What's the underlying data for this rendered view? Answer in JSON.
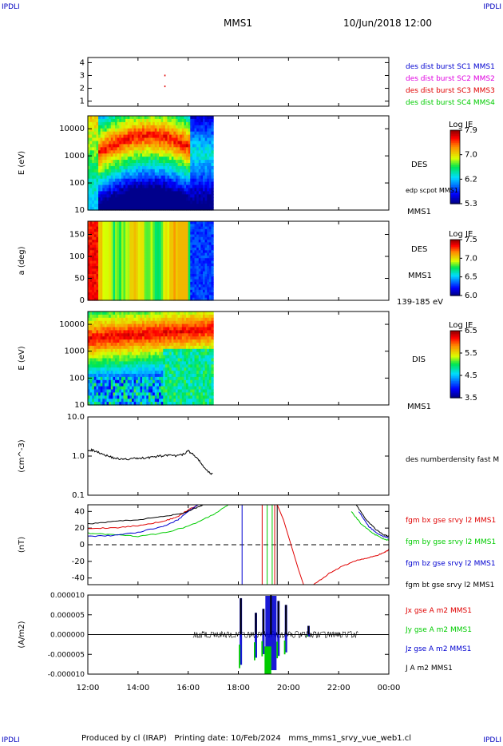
{
  "header": {
    "title": "MMS1",
    "datetime": "10/Jun/2018 12:00",
    "corner_label": "IPDLI"
  },
  "footer": {
    "produced_by": "Produced by cl (IRAP)",
    "printing_date": "Printing date: 10/Feb/2024",
    "filename": "mms_mms1_srvy_vue_web1.cl"
  },
  "time_axis": {
    "ticks": [
      "12:00",
      "14:00",
      "16:00",
      "18:00",
      "20:00",
      "22:00",
      "00:00"
    ],
    "start_hour": 12,
    "end_hour": 24,
    "data_end_hour": 17.0
  },
  "colors": {
    "red": "#e00000",
    "green": "#00cc00",
    "blue": "#0000d0",
    "magenta": "#e000e0",
    "black": "#000000"
  },
  "chart_data": [
    {
      "type": "scatter",
      "panel": "burst",
      "yticks": [
        "1",
        "2",
        "3",
        "4"
      ],
      "ylim": [
        0.6,
        4.4
      ],
      "legend": [
        "des dist burst SC1 MMS1",
        "des dist burst SC2 MMS2",
        "des dist burst SC3 MMS3",
        "des dist burst SC4 MMS4"
      ],
      "legend_colors": [
        "#0000d0",
        "#e000e0",
        "#e00000",
        "#00cc00"
      ],
      "points": [
        {
          "x": 15.05,
          "y": 3.0
        },
        {
          "x": 15.05,
          "y": 2.15
        }
      ]
    },
    {
      "type": "heatmap",
      "panel": "des_energy",
      "ylabel": "E (eV)",
      "yticks": [
        "10",
        "100",
        "1000",
        "10000"
      ],
      "ylim": [
        10,
        30000
      ],
      "yscale": "log",
      "right_label": "DES",
      "right_sublabel": "edp scpot MMS1",
      "bottom_label": "MMS1",
      "colorbar": {
        "title": "Log JE",
        "ticks": [
          "7.9",
          "7.0",
          "6.2",
          "5.3"
        ],
        "range": [
          5.3,
          7.9
        ]
      }
    },
    {
      "type": "heatmap",
      "panel": "des_pitch",
      "ylabel": "a (deg)",
      "yticks": [
        "0",
        "50",
        "100",
        "150"
      ],
      "ylim": [
        0,
        180
      ],
      "right_label": "DES",
      "right_sublabel": "MMS1",
      "bottom_label": "139-185 eV",
      "colorbar": {
        "title": "Log JE",
        "ticks": [
          "7.5",
          "7.0",
          "6.5",
          "6.0"
        ],
        "range": [
          6.0,
          7.5
        ]
      }
    },
    {
      "type": "heatmap",
      "panel": "dis_energy",
      "ylabel": "E (eV)",
      "yticks": [
        "10",
        "100",
        "1000",
        "10000"
      ],
      "ylim": [
        10,
        30000
      ],
      "yscale": "log",
      "right_label": "DIS",
      "bottom_label": "MMS1",
      "colorbar": {
        "title": "Log JE",
        "ticks": [
          "6.5",
          "5.5",
          "4.5",
          "3.5"
        ],
        "range": [
          3.5,
          6.5
        ]
      }
    },
    {
      "type": "line",
      "panel": "density",
      "ylabel": "(cm^-3)",
      "yticks": [
        "0.1",
        "1.0",
        "10.0"
      ],
      "ylim": [
        0.1,
        10
      ],
      "yscale": "log",
      "legend": [
        "des numberdensity fast M"
      ],
      "series": [
        {
          "name": "des numberdensity fast M",
          "x": [
            12.0,
            12.2,
            12.5,
            12.8,
            13.1,
            13.4,
            13.7,
            14.0,
            14.3,
            14.6,
            14.9,
            15.2,
            15.5,
            15.8,
            16.0,
            16.2,
            16.4,
            16.6,
            16.8,
            17.0
          ],
          "y": [
            1.45,
            1.4,
            1.2,
            1.0,
            0.88,
            0.82,
            0.85,
            0.88,
            0.9,
            0.95,
            1.0,
            1.05,
            1.0,
            1.1,
            1.35,
            1.1,
            0.8,
            0.55,
            0.38,
            0.35
          ]
        }
      ]
    },
    {
      "type": "line",
      "panel": "bfield",
      "ylabel": "(nT)",
      "yticks": [
        "-40",
        "-20",
        "0",
        "20",
        "40"
      ],
      "ylim": [
        -48,
        48
      ],
      "legend": [
        "fgm bx gse srvy l2 MMS1",
        "fgm by gse srvy l2 MMS1",
        "fgm bz gse srvy l2 MMS1",
        "fgm bt gse srvy l2 MMS1"
      ],
      "legend_colors": [
        "#e00000",
        "#00cc00",
        "#0000d0",
        "#000000"
      ],
      "series": [
        {
          "name": "fgm bx gse srvy l2 MMS1",
          "x": [
            12.0,
            13.0,
            14.0,
            15.0,
            15.6,
            16.0,
            16.4
          ],
          "y": [
            20,
            20,
            23,
            28,
            34,
            42,
            48
          ]
        },
        {
          "name": "fgm by gse srvy l2 MMS1",
          "x": [
            12.0,
            13.0,
            14.0,
            15.0,
            16.0,
            17.0,
            17.6
          ],
          "y": [
            14,
            12,
            10,
            14,
            22,
            36,
            48
          ]
        },
        {
          "name": "fgm bz gse srvy l2 MMS1",
          "x": [
            12.0,
            13.0,
            14.0,
            15.0,
            15.6,
            16.0,
            16.4
          ],
          "y": [
            10,
            11,
            15,
            22,
            30,
            40,
            48
          ]
        },
        {
          "name": "fgm bt gse srvy l2 MMS1",
          "x": [
            12.0,
            13.0,
            14.0,
            15.0,
            15.8,
            16.3,
            16.6
          ],
          "y": [
            25,
            28,
            30,
            34,
            38,
            44,
            48
          ]
        },
        {
          "name": "fgm bx gse srvy l2 MMS1",
          "x": [
            21.0,
            21.6,
            22.2,
            22.8,
            23.4,
            23.8,
            24.0
          ],
          "y": [
            -48,
            -35,
            -25,
            -18,
            -14,
            -10,
            -6
          ]
        },
        {
          "name": "fgm by gse srvy l2 MMS1",
          "x": [
            22.5,
            22.9,
            23.3,
            23.7,
            24.0
          ],
          "y": [
            40,
            25,
            15,
            8,
            5
          ]
        },
        {
          "name": "fgm bz gse srvy l2 MMS1",
          "x": [
            22.8,
            23.2,
            23.6,
            24.0
          ],
          "y": [
            40,
            22,
            12,
            8
          ]
        },
        {
          "name": "fgm bt gse srvy l2 MMS1",
          "x": [
            22.7,
            23.1,
            23.5,
            23.8,
            24.0
          ],
          "y": [
            48,
            30,
            18,
            12,
            10
          ]
        }
      ],
      "vlines": [
        {
          "x": 18.15,
          "color": "#0000d0"
        },
        {
          "x": 18.95,
          "color": "#e00000"
        },
        {
          "x": 19.15,
          "color": "#00cc00"
        },
        {
          "x": 19.35,
          "color": "#00cc00"
        },
        {
          "x": 19.45,
          "color": "#e00000"
        },
        {
          "x": 19.55,
          "color": "#000000"
        }
      ],
      "zero_line": true
    },
    {
      "type": "line",
      "panel": "current",
      "ylabel": "(A/m2)",
      "yticks": [
        "-0.000010",
        "-0.000005",
        "0.000000",
        "0.000005",
        "0.000010"
      ],
      "ylim": [
        -1e-05,
        1e-05
      ],
      "legend": [
        "Jx gse A m2 MMS1",
        "Jy gse A m2 MMS1",
        "Jz gse A m2 MMS1",
        "J A m2 MMS1"
      ],
      "legend_colors": [
        "#e00000",
        "#00cc00",
        "#0000d0",
        "#000000"
      ],
      "spikes": [
        {
          "x": 18.1,
          "top": 9.2e-06,
          "bottom": -8.5e-06
        },
        {
          "x": 18.7,
          "top": 5.5e-06,
          "bottom": -6.5e-06
        },
        {
          "x": 19.0,
          "top": 6.5e-06,
          "bottom": -5.5e-06
        },
        {
          "x": 19.3,
          "top": 1e-05,
          "bottom": -1e-05
        },
        {
          "x": 19.6,
          "top": 8.5e-06,
          "bottom": -6e-06
        },
        {
          "x": 19.9,
          "top": 7.5e-06,
          "bottom": -5e-06
        },
        {
          "x": 20.8,
          "top": 2.2e-06,
          "bottom": -5e-07
        }
      ]
    }
  ]
}
